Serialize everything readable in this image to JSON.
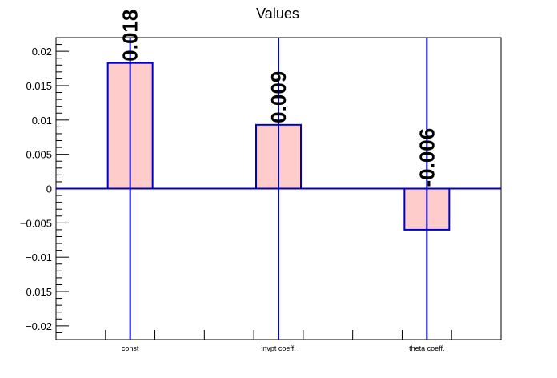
{
  "chart_data": {
    "type": "bar",
    "title": "Values",
    "categories": [
      "const",
      "invpt coeff.",
      "theta coeff."
    ],
    "values": [
      0.0183,
      0.0093,
      -0.006
    ],
    "value_labels": [
      "0.018",
      "0.009",
      "-0.006"
    ],
    "ylim": [
      -0.022,
      0.022
    ],
    "yticks": [
      -0.02,
      -0.015,
      -0.01,
      -0.005,
      0,
      0.005,
      0.01,
      0.015,
      0.02
    ],
    "ytick_labels": [
      "−0.02",
      "−0.015",
      "−0.01",
      "−0.005",
      "0",
      "0.005",
      "0.01",
      "0.015",
      "0.02"
    ],
    "grid": false,
    "bar_fill": "#ffcccc",
    "bar_stroke": "#0000cc",
    "line_color": "#0000cc"
  }
}
